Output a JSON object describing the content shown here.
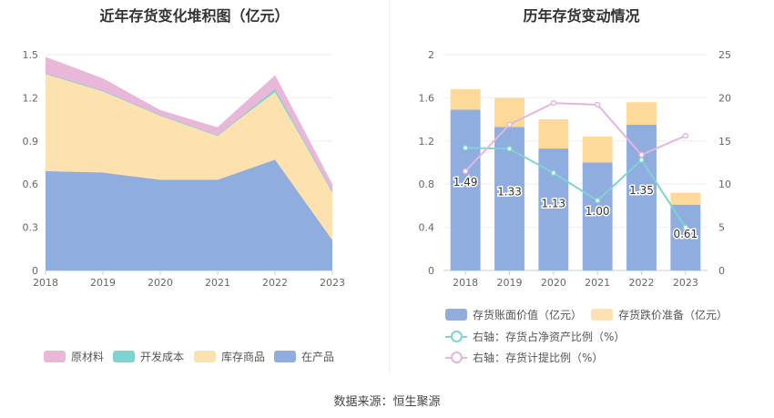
{
  "left_title": "近年存货变化堆积图（亿元）",
  "right_title": "历年存货变动情况",
  "source": "数据来源：恒生聚源",
  "chart_data": [
    {
      "type": "area",
      "title": "近年存货变化堆积图（亿元）",
      "categories": [
        "2018",
        "2019",
        "2020",
        "2021",
        "2022",
        "2023"
      ],
      "ylim": [
        0,
        1.5
      ],
      "yticks": [
        "0",
        "0.3",
        "0.6",
        "0.9",
        "1.2",
        "1.5"
      ],
      "grid": true,
      "legend_position": "bottom",
      "stacking_order": [
        "在产品",
        "库存商品",
        "开发成本",
        "原材料"
      ],
      "series": [
        {
          "name": "在产品",
          "color": "#8fadde",
          "values": [
            0.69,
            0.68,
            0.63,
            0.63,
            0.77,
            0.21
          ]
        },
        {
          "name": "库存商品",
          "color": "#fde2af",
          "values": [
            0.68,
            0.57,
            0.45,
            0.31,
            0.47,
            0.34
          ]
        },
        {
          "name": "开发成本",
          "color": "#7fd3d3",
          "values": [
            0,
            0,
            0,
            0,
            0.02,
            0
          ]
        },
        {
          "name": "原材料",
          "color": "#e9b8d9",
          "values": [
            0.11,
            0.08,
            0.03,
            0.05,
            0.09,
            0.04
          ]
        }
      ],
      "legend": [
        "原材料",
        "开发成本",
        "库存商品",
        "在产品"
      ]
    },
    {
      "type": "bar",
      "title": "历年存货变动情况",
      "categories": [
        "2018",
        "2019",
        "2020",
        "2021",
        "2022",
        "2023"
      ],
      "ylim_left": [
        0,
        2
      ],
      "yticks_left": [
        "0",
        "0.4",
        "0.8",
        "1.2",
        "1.6",
        "2"
      ],
      "ylim_right": [
        0,
        25
      ],
      "yticks_right": [
        "0",
        "5",
        "10",
        "15",
        "20",
        "25"
      ],
      "grid": true,
      "legend_position": "bottom",
      "bars": [
        {
          "name": "存货账面价值（亿元）",
          "color": "#8fadde",
          "values": [
            1.49,
            1.33,
            1.13,
            1.0,
            1.35,
            0.61
          ],
          "labels": [
            "1.49",
            "1.33",
            "1.13",
            "1.00",
            "1.35",
            "0.61"
          ]
        },
        {
          "name": "存货跌价准备（亿元）",
          "color": "#fdd99a",
          "values": [
            0.19,
            0.27,
            0.27,
            0.24,
            0.21,
            0.11
          ]
        }
      ],
      "lines": [
        {
          "name": "右轴：存货占净资产比例（%）",
          "color": "#7fd3d3",
          "values": [
            14.2,
            14.1,
            11.3,
            8.1,
            12.8,
            5.0
          ]
        },
        {
          "name": "右轴：存货计提比例（%）",
          "color": "#e3b6dc",
          "values": [
            11.5,
            16.9,
            19.4,
            19.2,
            13.4,
            15.6
          ]
        }
      ]
    }
  ]
}
